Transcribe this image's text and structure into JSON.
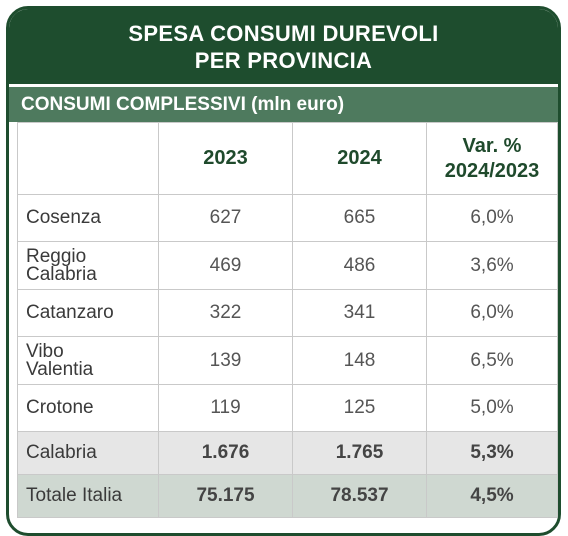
{
  "title": {
    "line1": "SPESA CONSUMI DUREVOLI",
    "line2": "PER PROVINCIA"
  },
  "subtitle": "CONSUMI COMPLESSIVI (mln euro)",
  "headers": {
    "col0": "",
    "col1": "2023",
    "col2": "2024",
    "col3_line1": "Var. %",
    "col3_line2": "2024/2023"
  },
  "rows": [
    {
      "name_line1": "Cosenza",
      "name_line2": "",
      "v2023": "627",
      "v2024": "665",
      "var": "6,0%"
    },
    {
      "name_line1": "Reggio",
      "name_line2": "Calabria",
      "v2023": "469",
      "v2024": "486",
      "var": "3,6%"
    },
    {
      "name_line1": "Catanzaro",
      "name_line2": "",
      "v2023": "322",
      "v2024": "341",
      "var": "6,0%"
    },
    {
      "name_line1": "Vibo",
      "name_line2": "Valentia",
      "v2023": "139",
      "v2024": "148",
      "var": "6,5%"
    },
    {
      "name_line1": "Crotone",
      "name_line2": "",
      "v2023": "119",
      "v2024": "125",
      "var": "5,0%"
    }
  ],
  "total": {
    "name": "Calabria",
    "v2023": "1.676",
    "v2024": "1.765",
    "var": "5,3%"
  },
  "italy": {
    "name": "Totale Italia",
    "v2023": "75.175",
    "v2024": "78.537",
    "var": "4,5%"
  },
  "colors": {
    "title_bg": "#1e4d2e",
    "subtitle_bg": "#4e7a5e",
    "total_row_bg": "#e6e6e6",
    "italy_row_bg": "#cfd8d1",
    "header_text": "#1f4a2c"
  }
}
